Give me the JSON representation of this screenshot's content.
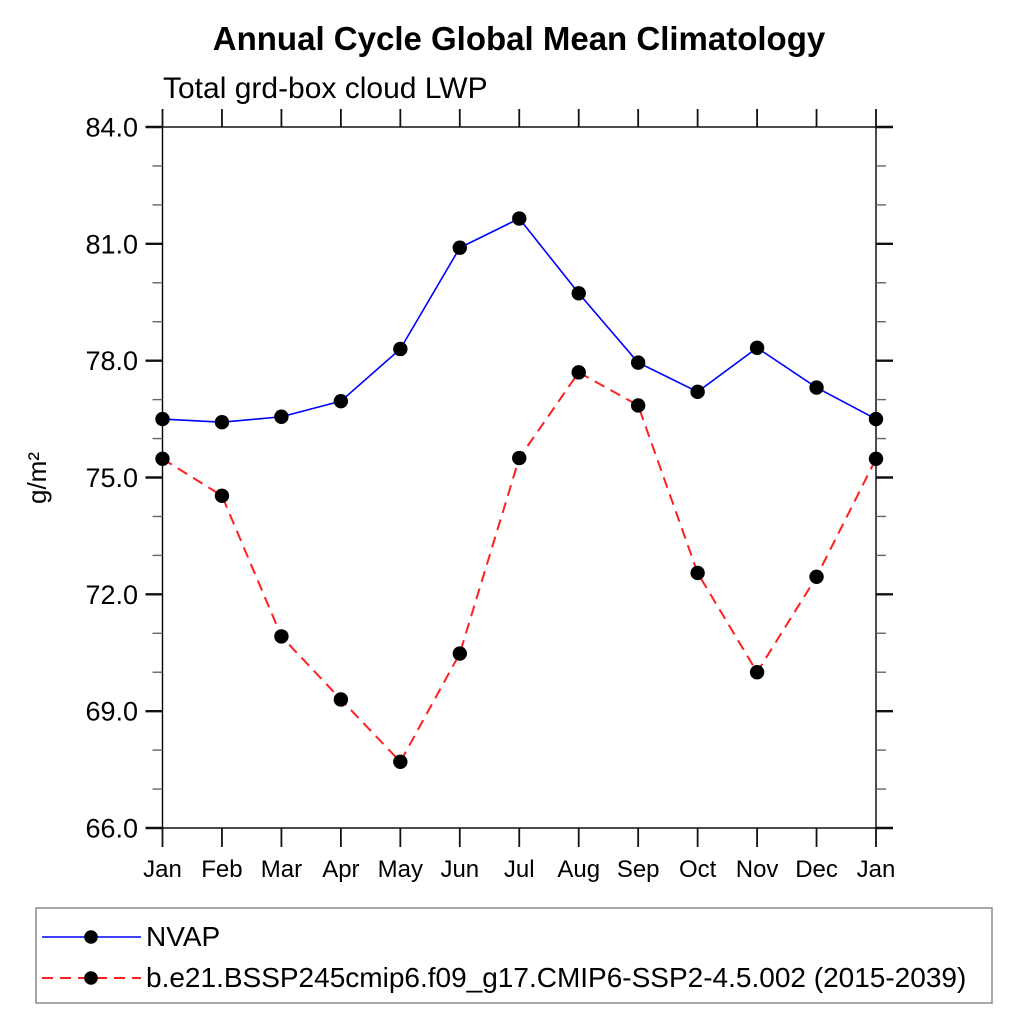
{
  "chart_data": {
    "type": "line",
    "title": "Annual Cycle Global Mean Climatology",
    "subtitle": "Total grd-box cloud LWP",
    "ylabel": "g/m²",
    "x_categories": [
      "Jan",
      "Feb",
      "Mar",
      "Apr",
      "May",
      "Jun",
      "Jul",
      "Aug",
      "Sep",
      "Oct",
      "Nov",
      "Dec",
      "Jan"
    ],
    "ylim": [
      66.0,
      84.0
    ],
    "y_major_ticks": [
      84.0,
      81.0,
      78.0,
      75.0,
      72.0,
      69.0,
      66.0
    ],
    "y_major_tick_labels": [
      "84.0",
      "81.0",
      "78.0",
      "75.0",
      "72.0",
      "69.0",
      "66.0"
    ],
    "y_minor_step": 1.0,
    "grid": false,
    "legend_position": "bottom-left-box",
    "series": [
      {
        "name": "NVAP",
        "color": "#0000ff",
        "line_style": "solid",
        "line_width": 1.6,
        "marker": "filled-circle",
        "marker_color": "#000000",
        "values": [
          76.5,
          76.42,
          76.56,
          76.96,
          78.3,
          80.9,
          81.65,
          79.73,
          77.95,
          77.2,
          78.33,
          77.31,
          76.5
        ]
      },
      {
        "name": "b.e21.BSSP245cmip6.f09_g17.CMIP6-SSP2-4.5.002 (2015-2039)",
        "color": "#ff1f1f",
        "line_style": "dashed",
        "line_width": 2.0,
        "marker": "filled-circle",
        "marker_color": "#000000",
        "values": [
          75.48,
          74.53,
          70.92,
          69.3,
          67.7,
          70.48,
          75.5,
          77.7,
          76.85,
          72.55,
          70.0,
          72.45,
          75.48
        ]
      }
    ]
  },
  "colors": {
    "background": "#ffffff",
    "axis": "#000000",
    "tick_major": "#111111",
    "tick_minor": "#666666",
    "legend_border": "#8c8c8c"
  }
}
